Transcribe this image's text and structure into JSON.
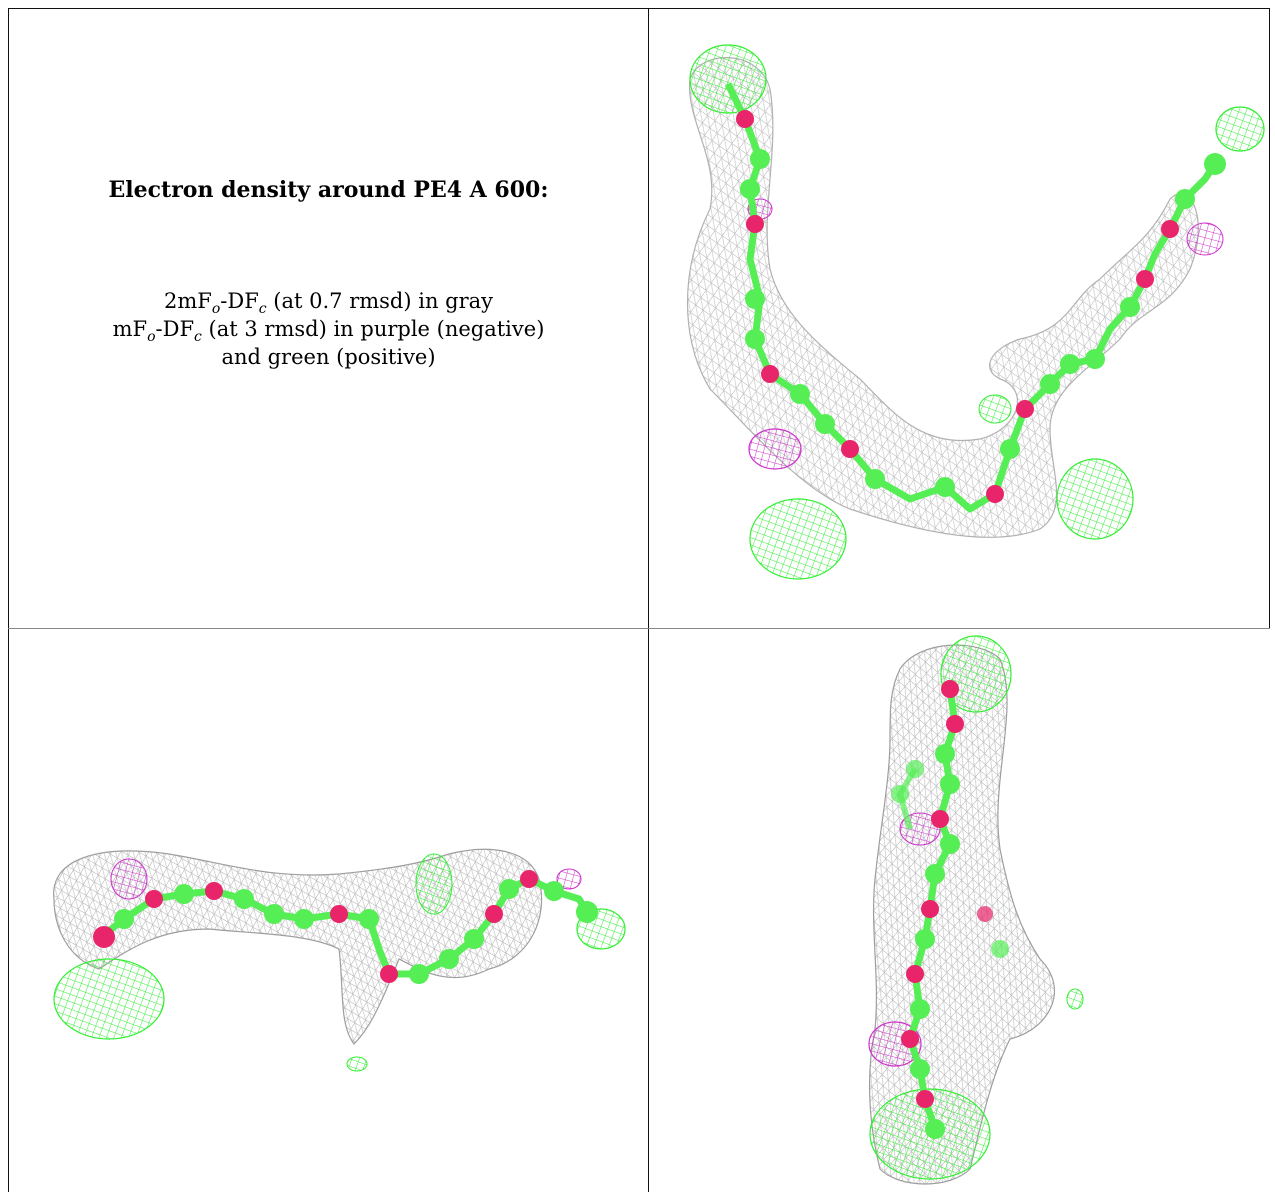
{
  "title": "Electron density around PE4 A 600:",
  "legend": {
    "line1": {
      "a": "2mF",
      "a_sub": "o",
      "b": "-DF",
      "b_sub": "c",
      "c": " (at 0.7 rmsd) in gray"
    },
    "line2": {
      "a": "mF",
      "a_sub": "o",
      "b": "-DF",
      "b_sub": "c",
      "c": " (at 3 rmsd) in purple (negative)"
    },
    "line3": "and green (positive)"
  },
  "colors": {
    "mesh_2fofc": "#a9a9a9",
    "mesh_negative": "#cc33cc",
    "mesh_positive": "#33ee33",
    "carbon": "#55ee55",
    "oxygen": "#e8246a"
  },
  "panels": [
    {
      "view": "top-right"
    },
    {
      "view": "bottom-left"
    },
    {
      "view": "bottom-right"
    }
  ]
}
